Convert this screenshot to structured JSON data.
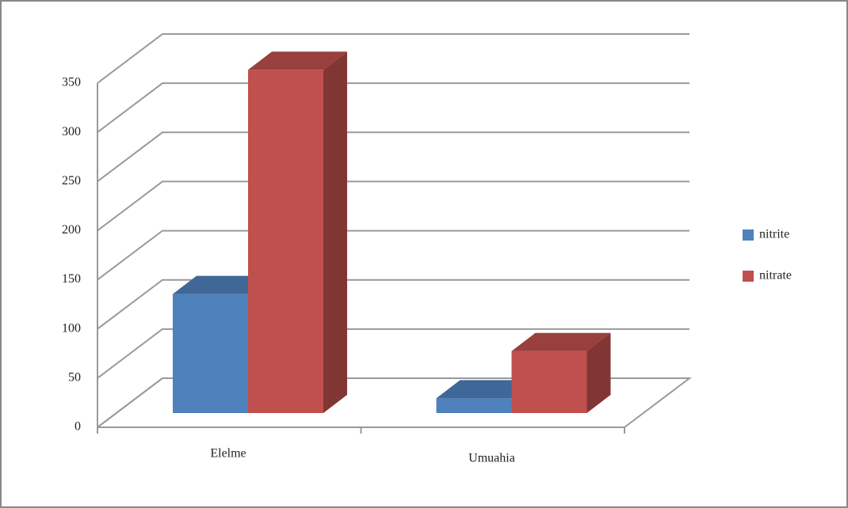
{
  "chart_data": {
    "type": "bar3d",
    "categories": [
      "Elelme",
      "Umuahia"
    ],
    "series": [
      {
        "name": "nitrite",
        "color": "#4f81bd",
        "values": [
          121,
          15
        ]
      },
      {
        "name": "nitrate",
        "color": "#c0504d",
        "values": [
          349,
          63
        ]
      }
    ],
    "ylim": [
      0,
      350
    ],
    "yticks": [
      0,
      50,
      100,
      150,
      200,
      250,
      300,
      350
    ],
    "grid": true,
    "legend": "right"
  }
}
